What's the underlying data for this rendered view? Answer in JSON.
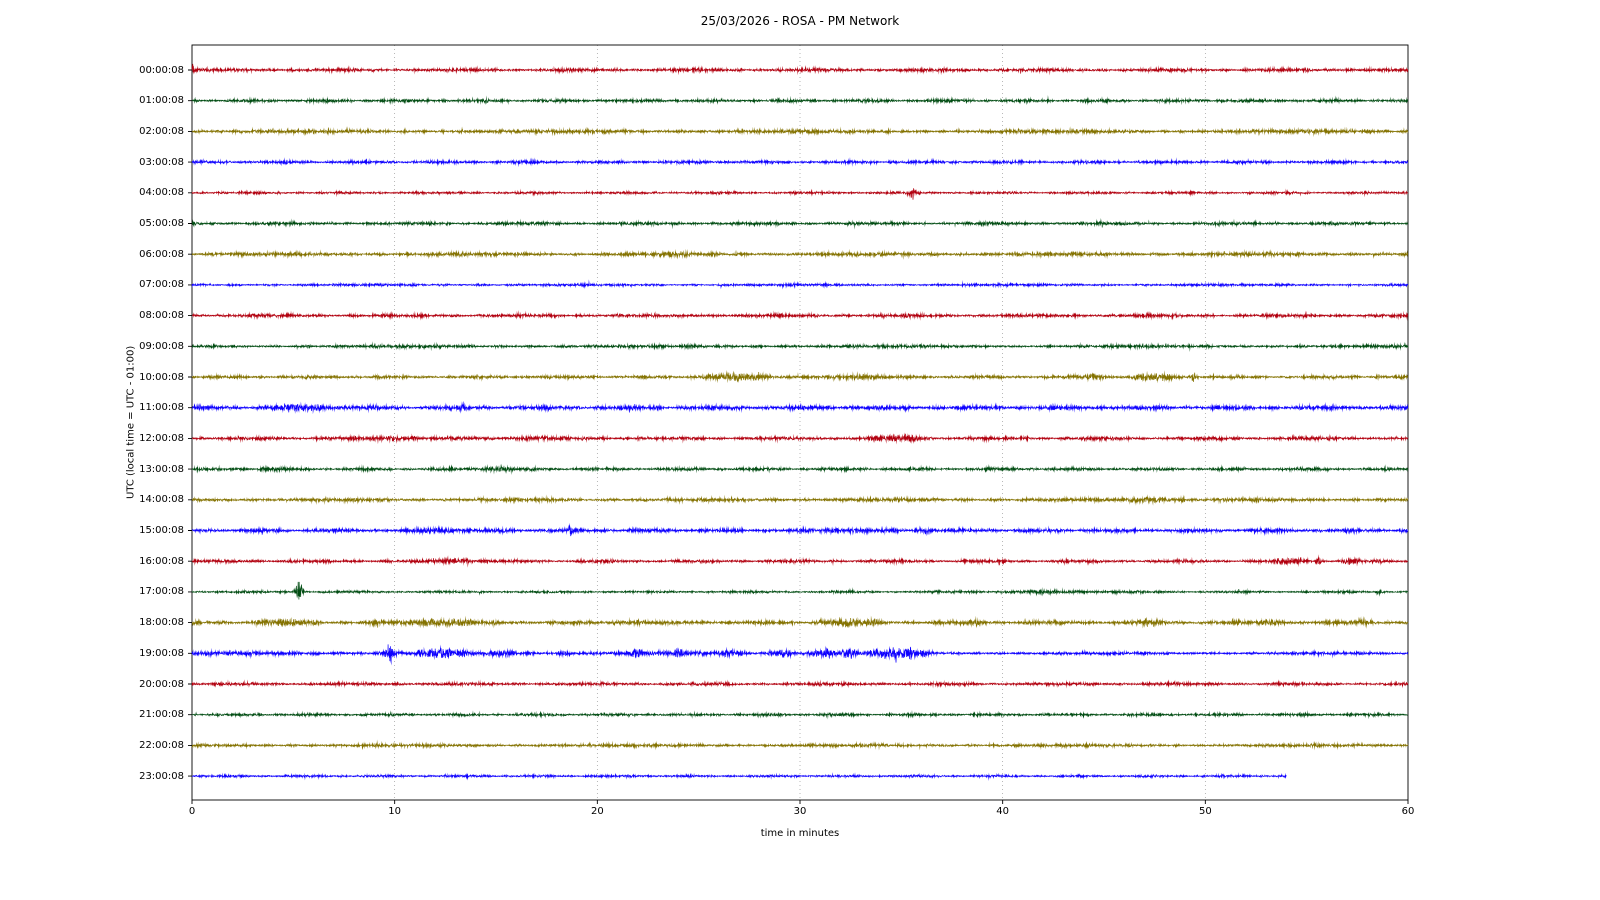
{
  "title": "25/03/2026 - ROSA - PM Network",
  "chart_data": {
    "type": "line",
    "subtype": "helicorder-dayplot",
    "title": "25/03/2026 - ROSA - PM Network",
    "xlabel": "time in minutes",
    "ylabel": "UTC (local time = UTC - 01:00)",
    "xlim": [
      0,
      60
    ],
    "x_ticks": [
      0,
      10,
      20,
      30,
      40,
      50,
      60
    ],
    "grid": "vertical-dotted-at-10-minute-intervals",
    "grid_minutes": [
      10,
      20,
      30,
      40,
      50
    ],
    "legend": "none",
    "trace_color_cycle": [
      "#B2000F",
      "#004C12",
      "#847200",
      "#0E01FF"
    ],
    "rows": [
      {
        "label": "00:00:08",
        "color": "#B2000F",
        "base_amp": 2.2,
        "end": 60,
        "events": [
          {
            "t": 0.0,
            "dur": 0.15,
            "amp": 9,
            "type": "spike"
          }
        ]
      },
      {
        "label": "01:00:08",
        "color": "#004C12",
        "base_amp": 2.0,
        "end": 60,
        "events": []
      },
      {
        "label": "02:00:08",
        "color": "#847200",
        "base_amp": 2.4,
        "end": 60,
        "events": []
      },
      {
        "label": "03:00:08",
        "color": "#0E01FF",
        "base_amp": 2.0,
        "end": 60,
        "events": []
      },
      {
        "label": "04:00:08",
        "color": "#B2000F",
        "base_amp": 1.6,
        "end": 60,
        "events": [
          {
            "t": 35.3,
            "dur": 0.9,
            "amp": 7,
            "type": "spike"
          }
        ]
      },
      {
        "label": "05:00:08",
        "color": "#004C12",
        "base_amp": 2.0,
        "end": 60,
        "events": []
      },
      {
        "label": "06:00:08",
        "color": "#847200",
        "base_amp": 2.4,
        "end": 60,
        "events": [
          {
            "t": 23.0,
            "dur": 1.5,
            "amp": 1.2,
            "type": "burst"
          }
        ]
      },
      {
        "label": "07:00:08",
        "color": "#0E01FF",
        "base_amp": 1.6,
        "end": 60,
        "events": []
      },
      {
        "label": "08:00:08",
        "color": "#B2000F",
        "base_amp": 2.2,
        "end": 60,
        "events": []
      },
      {
        "label": "09:00:08",
        "color": "#004C12",
        "base_amp": 2.0,
        "end": 60,
        "events": []
      },
      {
        "label": "10:00:08",
        "color": "#847200",
        "base_amp": 2.0,
        "end": 60,
        "events": [
          {
            "t": 24.5,
            "dur": 4.5,
            "amp": 3.2,
            "type": "burst"
          },
          {
            "t": 31.5,
            "dur": 3.0,
            "amp": 2.2,
            "type": "burst"
          },
          {
            "t": 43.5,
            "dur": 2.0,
            "amp": 1.8,
            "type": "burst"
          },
          {
            "t": 46.0,
            "dur": 3.0,
            "amp": 2.6,
            "type": "burst"
          },
          {
            "t": 49.2,
            "dur": 0.8,
            "amp": 4.5,
            "type": "spike"
          },
          {
            "t": 58.4,
            "dur": 0.4,
            "amp": 2.5,
            "type": "spike"
          }
        ]
      },
      {
        "label": "11:00:08",
        "color": "#0E01FF",
        "base_amp": 2.8,
        "end": 60,
        "events": [
          {
            "t": 3.5,
            "dur": 4.0,
            "amp": 2.2,
            "type": "burst"
          },
          {
            "t": 13.2,
            "dur": 0.5,
            "amp": 3.0,
            "type": "spike"
          }
        ]
      },
      {
        "label": "12:00:08",
        "color": "#B2000F",
        "base_amp": 2.2,
        "end": 60,
        "events": [
          {
            "t": 8.5,
            "dur": 3.0,
            "amp": 1.8,
            "type": "burst"
          },
          {
            "t": 15.5,
            "dur": 2.5,
            "amp": 1.2,
            "type": "burst"
          },
          {
            "t": 33.0,
            "dur": 3.5,
            "amp": 2.0,
            "type": "burst"
          }
        ]
      },
      {
        "label": "13:00:08",
        "color": "#004C12",
        "base_amp": 2.0,
        "end": 60,
        "events": [
          {
            "t": 3.2,
            "dur": 1.2,
            "amp": 1.3,
            "type": "burst"
          },
          {
            "t": 14.0,
            "dur": 2.0,
            "amp": 2.2,
            "type": "burst"
          }
        ]
      },
      {
        "label": "14:00:08",
        "color": "#847200",
        "base_amp": 2.3,
        "end": 60,
        "events": [
          {
            "t": 45.8,
            "dur": 3.0,
            "amp": 2.2,
            "type": "burst"
          },
          {
            "t": 48.7,
            "dur": 0.6,
            "amp": 2.5,
            "type": "spike"
          }
        ]
      },
      {
        "label": "15:00:08",
        "color": "#0E01FF",
        "base_amp": 2.5,
        "end": 60,
        "events": [
          {
            "t": 10.5,
            "dur": 4.0,
            "amp": 1.2,
            "type": "burst"
          },
          {
            "t": 18.5,
            "dur": 0.5,
            "amp": 4.0,
            "type": "spike"
          },
          {
            "t": 31.0,
            "dur": 2.5,
            "amp": 1.8,
            "type": "burst"
          },
          {
            "t": 35.5,
            "dur": 1.2,
            "amp": 1.8,
            "type": "burst"
          }
        ]
      },
      {
        "label": "16:00:08",
        "color": "#B2000F",
        "base_amp": 2.0,
        "end": 60,
        "events": [
          {
            "t": 11.5,
            "dur": 2.5,
            "amp": 2.2,
            "type": "burst"
          },
          {
            "t": 13.4,
            "dur": 0.5,
            "amp": 3.5,
            "type": "spike"
          },
          {
            "t": 43.0,
            "dur": 0.5,
            "amp": 2.8,
            "type": "spike"
          },
          {
            "t": 53.0,
            "dur": 2.2,
            "amp": 2.4,
            "type": "burst"
          },
          {
            "t": 55.4,
            "dur": 0.6,
            "amp": 4.5,
            "type": "spike"
          },
          {
            "t": 56.6,
            "dur": 1.2,
            "amp": 2.2,
            "type": "burst"
          }
        ]
      },
      {
        "label": "17:00:08",
        "color": "#004C12",
        "base_amp": 1.5,
        "end": 60,
        "events": [
          {
            "t": 5.0,
            "dur": 0.9,
            "amp": 13,
            "type": "spike"
          },
          {
            "t": 38.0,
            "dur": 9.0,
            "amp": 0.7,
            "type": "burst"
          },
          {
            "t": 58.4,
            "dur": 0.6,
            "amp": 3.5,
            "type": "spike"
          }
        ]
      },
      {
        "label": "18:00:08",
        "color": "#847200",
        "base_amp": 2.4,
        "end": 60,
        "events": [
          {
            "t": 2.5,
            "dur": 4.0,
            "amp": 2.2,
            "type": "burst"
          },
          {
            "t": 10.0,
            "dur": 4.0,
            "amp": 2.8,
            "type": "burst"
          },
          {
            "t": 13.5,
            "dur": 0.6,
            "amp": 4.5,
            "type": "spike"
          },
          {
            "t": 20.5,
            "dur": 2.0,
            "amp": 1.8,
            "type": "burst"
          },
          {
            "t": 30.5,
            "dur": 3.5,
            "amp": 2.8,
            "type": "burst"
          },
          {
            "t": 33.3,
            "dur": 1.0,
            "amp": 3.2,
            "type": "spike"
          },
          {
            "t": 38.3,
            "dur": 1.0,
            "amp": 2.2,
            "type": "burst"
          },
          {
            "t": 46.5,
            "dur": 1.6,
            "amp": 2.4,
            "type": "burst"
          },
          {
            "t": 52.5,
            "dur": 1.6,
            "amp": 1.8,
            "type": "burst"
          },
          {
            "t": 57.3,
            "dur": 1.2,
            "amp": 2.2,
            "type": "burst"
          }
        ]
      },
      {
        "label": "19:00:08",
        "color": "#0E01FF",
        "base_amp": 2.6,
        "end": 60,
        "base_after": {
          "t": 36,
          "amp": 1.9
        },
        "events": [
          {
            "t": 9.4,
            "dur": 1.2,
            "amp": 11,
            "type": "spike"
          },
          {
            "t": 10.8,
            "dur": 3.0,
            "amp": 3.5,
            "type": "burst"
          },
          {
            "t": 14.5,
            "dur": 1.6,
            "amp": 2.6,
            "type": "burst"
          },
          {
            "t": 17.8,
            "dur": 1.0,
            "amp": 2.0,
            "type": "burst"
          },
          {
            "t": 21.3,
            "dur": 1.2,
            "amp": 2.4,
            "type": "burst"
          },
          {
            "t": 23.3,
            "dur": 1.2,
            "amp": 2.6,
            "type": "burst"
          },
          {
            "t": 25.8,
            "dur": 1.6,
            "amp": 2.6,
            "type": "burst"
          },
          {
            "t": 28.3,
            "dur": 1.6,
            "amp": 3.2,
            "type": "burst"
          },
          {
            "t": 30.3,
            "dur": 1.6,
            "amp": 3.4,
            "type": "burst"
          },
          {
            "t": 31.8,
            "dur": 1.2,
            "amp": 3.4,
            "type": "burst"
          },
          {
            "t": 33.2,
            "dur": 2.6,
            "amp": 4.2,
            "type": "burst"
          },
          {
            "t": 35.0,
            "dur": 1.6,
            "amp": 3.2,
            "type": "burst"
          }
        ]
      },
      {
        "label": "20:00:08",
        "color": "#B2000F",
        "base_amp": 2.0,
        "end": 60,
        "events": []
      },
      {
        "label": "21:00:08",
        "color": "#004C12",
        "base_amp": 1.8,
        "end": 60,
        "events": []
      },
      {
        "label": "22:00:08",
        "color": "#847200",
        "base_amp": 2.0,
        "end": 60,
        "events": [
          {
            "t": 9.0,
            "dur": 0.35,
            "amp": 1.8,
            "type": "spike"
          }
        ]
      },
      {
        "label": "23:00:08",
        "color": "#0E01FF",
        "base_amp": 1.6,
        "end": 54,
        "events": []
      }
    ]
  }
}
